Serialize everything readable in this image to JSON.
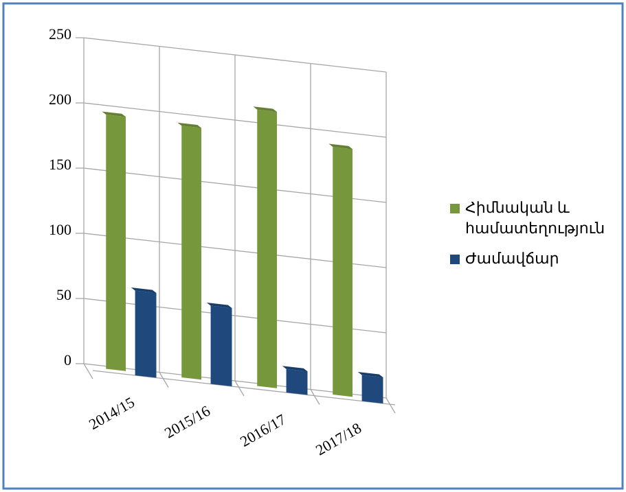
{
  "chart_data": {
    "type": "bar3d",
    "categories": [
      "2014/15",
      "2015/16",
      "2016/17",
      "2017/18"
    ],
    "series": [
      {
        "name": "Հիմնական և համատեղություն",
        "color": "#77973d",
        "values": [
          195,
          193,
          212,
          190
        ]
      },
      {
        "name": "Ժամավճար",
        "color": "#1f497d",
        "values": [
          65,
          60,
          18,
          20
        ]
      }
    ],
    "ylim": [
      0,
      250
    ],
    "yticks": [
      0,
      50,
      100,
      150,
      200,
      250
    ],
    "grid": true,
    "legend": "right"
  }
}
